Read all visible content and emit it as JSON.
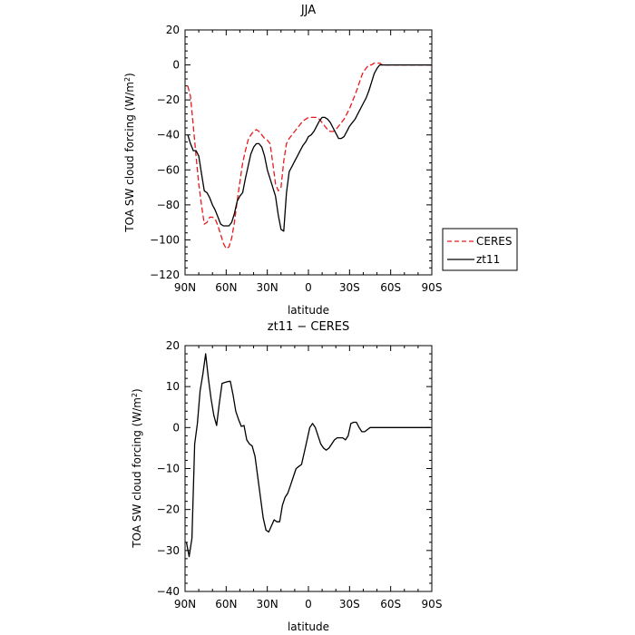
{
  "chart_data": [
    {
      "type": "line",
      "title": "JJA",
      "xlabel": "latitude",
      "ylabel_main": "TOA SW cloud forcing (W/m",
      "ylabel_sup": "2",
      "ylabel_end": ")",
      "xlim": [
        90,
        -90
      ],
      "ylim": [
        -120,
        20
      ],
      "x_ticks": [
        90,
        60,
        30,
        0,
        -30,
        -60,
        -90
      ],
      "x_tick_labels": [
        "90N",
        "60N",
        "30N",
        "0",
        "30S",
        "60S",
        "90S"
      ],
      "y_ticks": [
        -120,
        -100,
        -80,
        -60,
        -40,
        -20,
        0,
        20
      ],
      "y_tick_labels": [
        "−120",
        "−100",
        "−80",
        "−60",
        "−40",
        "−20",
        "0",
        "20"
      ],
      "legend_placement": "right",
      "series": [
        {
          "name": "CERES",
          "color": "#e8191c",
          "dash": "dashed",
          "x": [
            88,
            86,
            84,
            82,
            80,
            78,
            76,
            74,
            72,
            70,
            68,
            66,
            64,
            62,
            60,
            58,
            56,
            54,
            52,
            50,
            48,
            46,
            44,
            42,
            40,
            38,
            36,
            34,
            32,
            30,
            28,
            26,
            24,
            22,
            20,
            18,
            16,
            14,
            12,
            10,
            8,
            6,
            4,
            2,
            0,
            -2,
            -4,
            -6,
            -8,
            -10,
            -12,
            -14,
            -16,
            -18,
            -20,
            -22,
            -24,
            -26,
            -28,
            -30,
            -32,
            -34,
            -36,
            -38,
            -40,
            -42,
            -44,
            -46,
            -48,
            -50,
            -52,
            -54,
            -56,
            -58,
            -60,
            -62,
            -64,
            -66,
            -68,
            -70,
            -72,
            -74,
            -76,
            -78,
            -80,
            -82,
            -84,
            -86,
            -88,
            -90
          ],
          "values": [
            -12,
            -18,
            -35,
            -52,
            -68,
            -80,
            -91,
            -90,
            -87,
            -87,
            -88,
            -92,
            -97,
            -102,
            -105,
            -104,
            -99,
            -90,
            -78,
            -67,
            -56,
            -49,
            -43,
            -40,
            -38,
            -37,
            -38,
            -40,
            -42,
            -43,
            -45,
            -56,
            -68,
            -72,
            -70,
            -55,
            -45,
            -42,
            -40,
            -38,
            -36,
            -34,
            -32,
            -31,
            -30,
            -30,
            -30,
            -30,
            -31,
            -33,
            -35,
            -37,
            -38,
            -38,
            -37,
            -35,
            -33,
            -31,
            -28,
            -25,
            -21,
            -17,
            -13,
            -8,
            -4,
            -2,
            0,
            0,
            1,
            1,
            1,
            0,
            0,
            0,
            0,
            0,
            0,
            0,
            0,
            0,
            0,
            0,
            0,
            0,
            0,
            0,
            0,
            0,
            0,
            0
          ]
        },
        {
          "name": "zt11",
          "color": "#000000",
          "dash": "solid",
          "x": [
            88,
            86,
            84,
            82,
            80,
            78,
            76,
            74,
            72,
            70,
            68,
            66,
            64,
            62,
            60,
            58,
            56,
            54,
            52,
            50,
            48,
            46,
            44,
            42,
            40,
            38,
            36,
            34,
            32,
            30,
            28,
            26,
            24,
            22,
            20,
            18,
            16,
            14,
            12,
            10,
            8,
            6,
            4,
            2,
            0,
            -2,
            -4,
            -6,
            -8,
            -10,
            -12,
            -14,
            -16,
            -18,
            -20,
            -22,
            -24,
            -26,
            -28,
            -30,
            -32,
            -34,
            -36,
            -38,
            -40,
            -42,
            -44,
            -46,
            -48,
            -50,
            -52,
            -54,
            -56,
            -58,
            -60,
            -62,
            -64,
            -66,
            -68,
            -70,
            -72,
            -74,
            -76,
            -78,
            -80,
            -82,
            -84,
            -86,
            -88,
            -90
          ],
          "values": [
            -40,
            -45,
            -49,
            -49,
            -52,
            -62,
            -72,
            -73,
            -76,
            -80,
            -83,
            -87,
            -91,
            -92,
            -92,
            -92,
            -90,
            -85,
            -78,
            -75,
            -73,
            -65,
            -58,
            -51,
            -47,
            -45,
            -45,
            -47,
            -52,
            -60,
            -65,
            -70,
            -75,
            -86,
            -94,
            -95,
            -73,
            -61,
            -58,
            -55,
            -52,
            -49,
            -46,
            -44,
            -41,
            -40,
            -38,
            -35,
            -32,
            -30,
            -30,
            -31,
            -33,
            -36,
            -39,
            -42,
            -42,
            -41,
            -38,
            -35,
            -33,
            -31,
            -28,
            -25,
            -22,
            -19,
            -15,
            -10,
            -5,
            -2,
            0,
            0,
            0,
            0,
            0,
            0,
            0,
            0,
            0,
            0,
            0,
            0,
            0,
            0,
            0,
            0,
            0,
            0,
            0,
            0
          ]
        }
      ]
    },
    {
      "type": "line",
      "title": "zt11 − CERES",
      "xlabel": "latitude",
      "ylabel_main": "TOA SW cloud forcing (W/m",
      "ylabel_sup": "2",
      "ylabel_end": ")",
      "xlim": [
        90,
        -90
      ],
      "ylim": [
        -40,
        20
      ],
      "x_ticks": [
        90,
        60,
        30,
        0,
        -30,
        -60,
        -90
      ],
      "x_tick_labels": [
        "90N",
        "60N",
        "30N",
        "0",
        "30S",
        "60S",
        "90S"
      ],
      "y_ticks": [
        -40,
        -30,
        -20,
        -10,
        0,
        10,
        20
      ],
      "y_tick_labels": [
        "−40",
        "−30",
        "−20",
        "−10",
        "0",
        "10",
        "20"
      ],
      "series": [
        {
          "color": "#000000",
          "dash": "solid",
          "x": [
            89,
            87,
            85,
            83,
            81,
            79,
            77,
            75,
            73,
            71,
            69,
            67,
            65,
            63,
            61,
            59,
            57,
            55,
            53,
            51,
            49,
            47,
            45,
            43,
            41,
            39,
            37,
            35,
            33,
            31,
            29,
            27,
            25,
            23,
            21,
            19,
            17,
            15,
            13,
            11,
            9,
            7,
            5,
            3,
            1,
            -1,
            -3,
            -5,
            -7,
            -9,
            -11,
            -13,
            -15,
            -17,
            -19,
            -21,
            -23,
            -25,
            -27,
            -29,
            -31,
            -33,
            -35,
            -37,
            -39,
            -41,
            -43,
            -45,
            -47,
            -49,
            -51,
            -53,
            -55,
            -57,
            -59,
            -61,
            -63,
            -65,
            -67,
            -69,
            -71,
            -73,
            -75,
            -77,
            -79,
            -81,
            -83,
            -85,
            -87,
            -89
          ],
          "values": [
            -28,
            -31.5,
            -27,
            -4,
            1,
            9,
            13,
            18,
            12,
            7,
            3,
            0.5,
            6,
            10.8,
            11,
            11.2,
            11.3,
            8,
            4,
            2,
            0.3,
            0.5,
            -3,
            -4,
            -4.5,
            -7,
            -12,
            -17,
            -22,
            -25,
            -25.5,
            -24,
            -22.5,
            -23,
            -23,
            -19,
            -17,
            -16,
            -14,
            -12,
            -10,
            -9.5,
            -9,
            -6,
            -3,
            0,
            1,
            0,
            -2,
            -4,
            -5,
            -5.5,
            -5,
            -4,
            -3,
            -2.5,
            -2.5,
            -2.5,
            -3,
            -2,
            1,
            1.3,
            1.3,
            0,
            -1,
            -1,
            -0.5,
            0,
            0,
            0,
            0,
            0,
            0,
            0,
            0,
            0,
            0,
            0,
            0,
            0,
            0,
            0,
            0,
            0,
            0,
            0,
            0,
            0,
            0,
            0
          ]
        }
      ]
    }
  ]
}
